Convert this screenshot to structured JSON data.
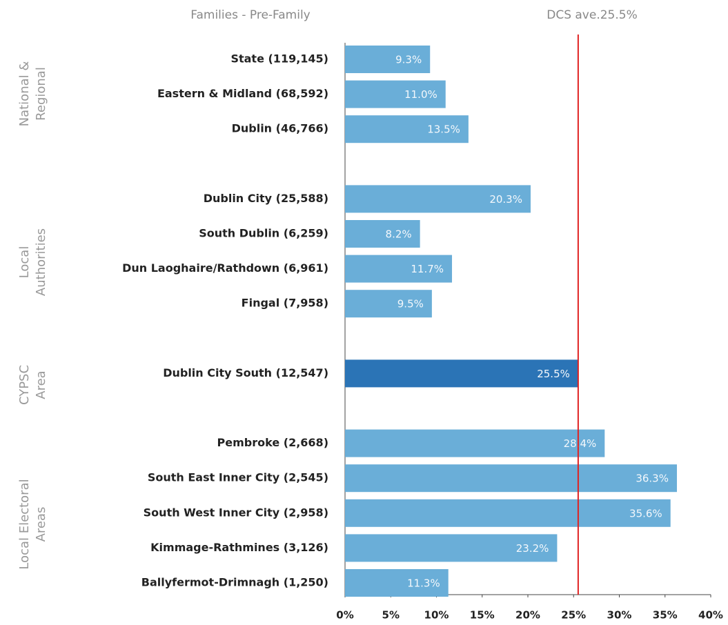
{
  "chart_data": {
    "type": "hbar",
    "title": "Families - Pre-Family",
    "categories": [
      "State (119,145)",
      "Eastern & Midland (68,592)",
      "Dublin (46,766)",
      null,
      "Dublin City (25,588)",
      "South Dublin (6,259)",
      "Dun Laoghaire/Rathdown (6,961)",
      "Fingal (7,958)",
      null,
      "Dublin City South (12,547)",
      null,
      "Pembroke (2,668)",
      "South East Inner City (2,545)",
      "South West Inner City (2,958)",
      "Kimmage-Rathmines (3,126)",
      "Ballyfermot-Drimnagh (1,250)"
    ],
    "values": [
      9.3,
      11.0,
      13.5,
      null,
      20.3,
      8.2,
      11.7,
      9.5,
      null,
      25.5,
      null,
      28.4,
      36.3,
      35.6,
      23.2,
      11.3
    ],
    "value_labels": [
      "9.3%",
      "11.0%",
      "13.5%",
      null,
      "20.3%",
      "8.2%",
      "11.7%",
      "9.5%",
      null,
      "25.5%",
      null,
      "28.4%",
      "36.3%",
      "35.6%",
      "23.2%",
      "11.3%"
    ],
    "colors": [
      "#6aaed8",
      "#6aaed8",
      "#6aaed8",
      null,
      "#6aaed8",
      "#6aaed8",
      "#6aaed8",
      "#6aaed8",
      null,
      "#2b74b6",
      null,
      "#6aaed8",
      "#6aaed8",
      "#6aaed8",
      "#6aaed8",
      "#6aaed8"
    ],
    "xlim": [
      0,
      40
    ],
    "xticks": [
      {
        "value": 0,
        "label": "0%"
      },
      {
        "value": 5,
        "label": "5%"
      },
      {
        "value": 10,
        "label": "10%"
      },
      {
        "value": 15,
        "label": "15%"
      },
      {
        "value": 20,
        "label": "20%"
      },
      {
        "value": 25,
        "label": "25%"
      },
      {
        "value": 30,
        "label": "30%"
      },
      {
        "value": 35,
        "label": "35%"
      },
      {
        "value": 40,
        "label": "40%"
      }
    ],
    "reference_line": {
      "value": 25.5,
      "label": "DCS ave.25.5%",
      "color": "#e02020"
    },
    "groups": [
      [
        "National &",
        "Regional"
      ],
      [
        "Local",
        "Authorities"
      ],
      [
        "CYPSC",
        "Area"
      ],
      [
        "Local Electoral",
        "Areas"
      ]
    ]
  }
}
